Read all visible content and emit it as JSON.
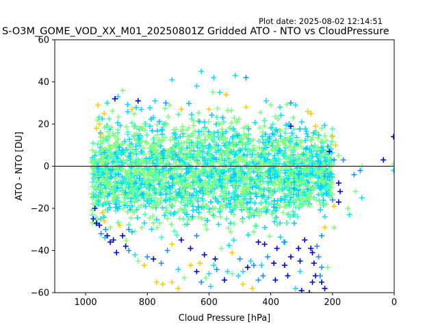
{
  "header": {
    "plot_date": "Plot date: 2025-08-02 12:14:51"
  },
  "chart_data": {
    "type": "scatter",
    "title": "S-O3M_GOME_VOD_XX_M01_20250801Z Gridded ATO - NTO vs CloudPressure",
    "xlabel": "Cloud Pressure [hPa]",
    "ylabel": "ATO - NTO [DU]",
    "xlim": [
      1100,
      0
    ],
    "ylim": [
      -60,
      60
    ],
    "x_inverted": true,
    "x_ticks": [
      1000,
      800,
      600,
      400,
      200,
      0
    ],
    "y_ticks": [
      60,
      40,
      20,
      0,
      -20,
      -40,
      -60
    ],
    "reference_line": {
      "y": 0,
      "color": "#000000"
    },
    "marker": "+",
    "colormap": "jet",
    "grid": false,
    "legend": "none",
    "main_cloud": {
      "x_range": [
        980,
        200
      ],
      "y_center": -3,
      "y_spread": 22,
      "dominant_colors": [
        "#80ff80",
        "#00e0ff",
        "#40ffc0",
        "#00c8ff"
      ]
    },
    "points": [
      {
        "x": 625,
        "y": 45,
        "c": "#1ad8ff"
      },
      {
        "x": 585,
        "y": 42,
        "c": "#1ad8ff"
      },
      {
        "x": 515,
        "y": 43,
        "c": "#1ad8ff"
      },
      {
        "x": 480,
        "y": 42,
        "c": "#1e90ff"
      },
      {
        "x": 720,
        "y": 41,
        "c": "#1ad8ff"
      },
      {
        "x": 640,
        "y": 38,
        "c": "#1ad8ff"
      },
      {
        "x": 565,
        "y": 35,
        "c": "#00e5ff"
      },
      {
        "x": 545,
        "y": 34,
        "c": "#ffcc00"
      },
      {
        "x": 880,
        "y": 36,
        "c": "#7fff7f"
      },
      {
        "x": 895,
        "y": 33,
        "c": "#1ad8ff"
      },
      {
        "x": 905,
        "y": 32,
        "c": "#0000ff"
      },
      {
        "x": 930,
        "y": 30,
        "c": "#1ad8ff"
      },
      {
        "x": 960,
        "y": 29,
        "c": "#ffcc00"
      },
      {
        "x": 830,
        "y": 31,
        "c": "#0000cd"
      },
      {
        "x": 775,
        "y": 31,
        "c": "#1ad8ff"
      },
      {
        "x": 740,
        "y": 30,
        "c": "#1e90ff"
      },
      {
        "x": 415,
        "y": 31,
        "c": "#1ad8ff"
      },
      {
        "x": 400,
        "y": 29,
        "c": "#7fff7f"
      },
      {
        "x": 370,
        "y": 28,
        "c": "#1ad8ff"
      },
      {
        "x": 335,
        "y": 30,
        "c": "#1e90ff"
      },
      {
        "x": 320,
        "y": 29,
        "c": "#00e5ff"
      },
      {
        "x": 280,
        "y": 26,
        "c": "#ffcc00"
      },
      {
        "x": 270,
        "y": 25,
        "c": "#ffcc00"
      },
      {
        "x": 335,
        "y": 19,
        "c": "#0000cd"
      },
      {
        "x": 300,
        "y": 21,
        "c": "#1ad8ff"
      },
      {
        "x": 255,
        "y": 19,
        "c": "#ffcc00"
      },
      {
        "x": 235,
        "y": 18,
        "c": "#7fff7f"
      },
      {
        "x": 200,
        "y": 14,
        "c": "#ffcc00"
      },
      {
        "x": 190,
        "y": 10,
        "c": "#ffcc00"
      },
      {
        "x": 210,
        "y": 7,
        "c": "#0000cd"
      },
      {
        "x": 180,
        "y": 5,
        "c": "#7fff7f"
      },
      {
        "x": 195,
        "y": 3,
        "c": "#1e90ff"
      },
      {
        "x": 165,
        "y": 3,
        "c": "#1e90ff"
      },
      {
        "x": 105,
        "y": 0,
        "c": "#7fff7f"
      },
      {
        "x": 110,
        "y": -2,
        "c": "#1e90ff"
      },
      {
        "x": 35,
        "y": 3,
        "c": "#0000cd"
      },
      {
        "x": 2,
        "y": 14,
        "c": "#0000cd"
      },
      {
        "x": 2,
        "y": 1,
        "c": "#7fff7f"
      },
      {
        "x": 2,
        "y": -2,
        "c": "#1ad8ff"
      },
      {
        "x": 180,
        "y": -8,
        "c": "#0000cd"
      },
      {
        "x": 175,
        "y": -12,
        "c": "#0000cd"
      },
      {
        "x": 130,
        "y": -4,
        "c": "#1e90ff"
      },
      {
        "x": 180,
        "y": -17,
        "c": "#0000cd"
      },
      {
        "x": 200,
        "y": -16,
        "c": "#1e90ff"
      },
      {
        "x": 150,
        "y": -20,
        "c": "#7fff7f"
      },
      {
        "x": 195,
        "y": -19,
        "c": "#ffcc00"
      },
      {
        "x": 145,
        "y": -23,
        "c": "#00e5ff"
      },
      {
        "x": 125,
        "y": -12,
        "c": "#7fff7f"
      },
      {
        "x": 105,
        "y": -15,
        "c": "#1ad8ff"
      },
      {
        "x": 225,
        "y": -24,
        "c": "#1ad8ff"
      },
      {
        "x": 195,
        "y": -29,
        "c": "#7fff7f"
      },
      {
        "x": 225,
        "y": -29,
        "c": "#ffcc00"
      },
      {
        "x": 235,
        "y": -33,
        "c": "#1e90ff"
      },
      {
        "x": 250,
        "y": -38,
        "c": "#1e90ff"
      },
      {
        "x": 270,
        "y": -39,
        "c": "#0000cd"
      },
      {
        "x": 265,
        "y": -41,
        "c": "#0000cd"
      },
      {
        "x": 245,
        "y": -43,
        "c": "#1e90ff"
      },
      {
        "x": 215,
        "y": -48,
        "c": "#7fff7f"
      },
      {
        "x": 260,
        "y": -46,
        "c": "#0000cd"
      },
      {
        "x": 235,
        "y": -48,
        "c": "#1e90ff"
      },
      {
        "x": 255,
        "y": -52,
        "c": "#0000cd"
      },
      {
        "x": 235,
        "y": -55,
        "c": "#0000cd"
      },
      {
        "x": 225,
        "y": -58,
        "c": "#0000cd"
      },
      {
        "x": 265,
        "y": -55,
        "c": "#0000cd"
      },
      {
        "x": 240,
        "y": -52,
        "c": "#1e90ff"
      },
      {
        "x": 275,
        "y": -60,
        "c": "#0000cd"
      },
      {
        "x": 300,
        "y": -59,
        "c": "#0000cd"
      },
      {
        "x": 305,
        "y": -50,
        "c": "#1ad8ff"
      },
      {
        "x": 305,
        "y": -45,
        "c": "#0000cd"
      },
      {
        "x": 320,
        "y": -58,
        "c": "#1ad8ff"
      },
      {
        "x": 345,
        "y": -52,
        "c": "#0000cd"
      },
      {
        "x": 355,
        "y": -47,
        "c": "#0000cd"
      },
      {
        "x": 335,
        "y": -43,
        "c": "#0000cd"
      },
      {
        "x": 385,
        "y": -54,
        "c": "#0000cd"
      },
      {
        "x": 390,
        "y": -46,
        "c": "#0000cd"
      },
      {
        "x": 410,
        "y": -43,
        "c": "#1e90ff"
      },
      {
        "x": 425,
        "y": -52,
        "c": "#1e90ff"
      },
      {
        "x": 440,
        "y": -54,
        "c": "#1e90ff"
      },
      {
        "x": 430,
        "y": -47,
        "c": "#1ad8ff"
      },
      {
        "x": 455,
        "y": -47,
        "c": "#1e90ff"
      },
      {
        "x": 475,
        "y": -48,
        "c": "#0000cd"
      },
      {
        "x": 465,
        "y": -45,
        "c": "#1ad8ff"
      },
      {
        "x": 490,
        "y": -50,
        "c": "#1ad8ff"
      },
      {
        "x": 505,
        "y": -52,
        "c": "#1ad8ff"
      },
      {
        "x": 525,
        "y": -51,
        "c": "#7fff7f"
      },
      {
        "x": 490,
        "y": -56,
        "c": "#ffcc00"
      },
      {
        "x": 460,
        "y": -58,
        "c": "#ffcc00"
      },
      {
        "x": 540,
        "y": -50,
        "c": "#1ad8ff"
      },
      {
        "x": 550,
        "y": -54,
        "c": "#0000cd"
      },
      {
        "x": 575,
        "y": -49,
        "c": "#1e90ff"
      },
      {
        "x": 585,
        "y": -47,
        "c": "#1ad8ff"
      },
      {
        "x": 600,
        "y": -51,
        "c": "#1ad8ff"
      },
      {
        "x": 595,
        "y": -57,
        "c": "#1ad8ff"
      },
      {
        "x": 625,
        "y": -55,
        "c": "#1e90ff"
      },
      {
        "x": 610,
        "y": -53,
        "c": "#7fff7f"
      },
      {
        "x": 640,
        "y": -50,
        "c": "#0000cd"
      },
      {
        "x": 660,
        "y": -47,
        "c": "#ffcc00"
      },
      {
        "x": 680,
        "y": -53,
        "c": "#7fff7f"
      },
      {
        "x": 700,
        "y": -49,
        "c": "#1ad8ff"
      },
      {
        "x": 700,
        "y": -58,
        "c": "#ffcc00"
      },
      {
        "x": 720,
        "y": -55,
        "c": "#ffcc00"
      },
      {
        "x": 750,
        "y": -56,
        "c": "#ffcc00"
      },
      {
        "x": 770,
        "y": -55,
        "c": "#ffcc00"
      },
      {
        "x": 755,
        "y": -46,
        "c": "#1e90ff"
      },
      {
        "x": 780,
        "y": -44,
        "c": "#0000cd"
      },
      {
        "x": 800,
        "y": -43,
        "c": "#1e90ff"
      },
      {
        "x": 810,
        "y": -47,
        "c": "#ffcc00"
      },
      {
        "x": 830,
        "y": -45,
        "c": "#7fff7f"
      },
      {
        "x": 840,
        "y": -42,
        "c": "#1ad8ff"
      },
      {
        "x": 860,
        "y": -40,
        "c": "#1e90ff"
      },
      {
        "x": 870,
        "y": -38,
        "c": "#0000cd"
      },
      {
        "x": 900,
        "y": -41,
        "c": "#0000ff"
      },
      {
        "x": 910,
        "y": -35,
        "c": "#0000cd"
      },
      {
        "x": 930,
        "y": -33,
        "c": "#0000cd"
      },
      {
        "x": 935,
        "y": -30,
        "c": "#1e90ff"
      },
      {
        "x": 955,
        "y": -28,
        "c": "#0000cd"
      },
      {
        "x": 950,
        "y": -32,
        "c": "#1e90ff"
      },
      {
        "x": 965,
        "y": -27,
        "c": "#0000cd"
      },
      {
        "x": 970,
        "y": -20,
        "c": "#0000cd"
      },
      {
        "x": 975,
        "y": -25,
        "c": "#0000cd"
      },
      {
        "x": 920,
        "y": -36,
        "c": "#0000cd"
      },
      {
        "x": 880,
        "y": -33,
        "c": "#0000cd"
      },
      {
        "x": 860,
        "y": -30,
        "c": "#1e90ff"
      },
      {
        "x": 890,
        "y": -28,
        "c": "#ffcc00"
      },
      {
        "x": 660,
        "y": -39,
        "c": "#0000cd"
      },
      {
        "x": 640,
        "y": -33,
        "c": "#1e90ff"
      },
      {
        "x": 690,
        "y": -35,
        "c": "#0000cd"
      },
      {
        "x": 720,
        "y": -37,
        "c": "#ffcc00"
      },
      {
        "x": 735,
        "y": -40,
        "c": "#1e90ff"
      },
      {
        "x": 560,
        "y": -39,
        "c": "#7fff7f"
      },
      {
        "x": 580,
        "y": -44,
        "c": "#0000cd"
      },
      {
        "x": 615,
        "y": -42,
        "c": "#0000cd"
      },
      {
        "x": 630,
        "y": -46,
        "c": "#ffcc00"
      },
      {
        "x": 500,
        "y": -44,
        "c": "#1e90ff"
      },
      {
        "x": 525,
        "y": -41,
        "c": "#ffcc00"
      },
      {
        "x": 380,
        "y": -39,
        "c": "#0000cd"
      },
      {
        "x": 355,
        "y": -36,
        "c": "#1e90ff"
      },
      {
        "x": 420,
        "y": -37,
        "c": "#0000cd"
      },
      {
        "x": 440,
        "y": -36,
        "c": "#0000cd"
      },
      {
        "x": 310,
        "y": -39,
        "c": "#0000cd"
      },
      {
        "x": 290,
        "y": -35,
        "c": "#0000cd"
      },
      {
        "x": 940,
        "y": 25,
        "c": "#ffcc00"
      },
      {
        "x": 955,
        "y": 20,
        "c": "#ffcc00"
      },
      {
        "x": 965,
        "y": 18,
        "c": "#ffcc00"
      },
      {
        "x": 950,
        "y": 15,
        "c": "#ffcc00"
      },
      {
        "x": 945,
        "y": -22,
        "c": "#ffcc00"
      },
      {
        "x": 940,
        "y": -26,
        "c": "#ffcc00"
      },
      {
        "x": 850,
        "y": 27,
        "c": "#ffcc00"
      },
      {
        "x": 690,
        "y": 27,
        "c": "#ffcc00"
      },
      {
        "x": 600,
        "y": 27,
        "c": "#ffcc00"
      },
      {
        "x": 480,
        "y": 28,
        "c": "#ffcc00"
      }
    ]
  }
}
